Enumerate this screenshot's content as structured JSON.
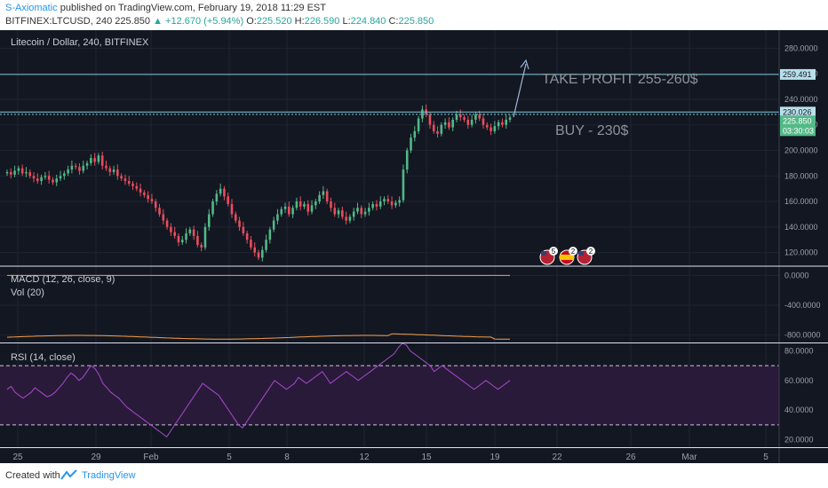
{
  "header": {
    "author": "S-Axiomatic",
    "published": "published on TradingView.com, February 19, 2018 11:29 EST",
    "symbol": "BITFINEX:LTCUSD, 240",
    "price": "225.850",
    "change": "▲ +12.670 (+5.94%)",
    "o_label": "O:",
    "o": "225.520",
    "h_label": "H:",
    "h": "226.590",
    "l_label": "L:",
    "l": "224.840",
    "c_label": "C:",
    "c": "225.850"
  },
  "footer": {
    "created": "Created with",
    "brand": "TradingView"
  },
  "colors": {
    "background": "#131722",
    "up": "#53b987",
    "down": "#eb4d5c",
    "line": "#7fc8d8",
    "rsi": "#a64ccc",
    "macd": "#f7a14a",
    "text": "#9aa0ac"
  },
  "chart_data": [
    {
      "type": "candlestick",
      "title": "Litecoin / Dollar, 240, BITFINEX",
      "ylim": [
        110,
        290
      ],
      "y_ticks": [
        "280.0000",
        "260.0000",
        "240.0000",
        "220.0000",
        "200.0000",
        "180.0000",
        "160.0000",
        "140.0000",
        "120.0000"
      ],
      "x_ticks": [
        "25",
        "29",
        "Feb",
        "5",
        "8",
        "12",
        "15",
        "19",
        "22",
        "26",
        "Mar",
        "5"
      ],
      "closes": [
        183,
        181,
        184,
        186,
        182,
        183,
        180,
        178,
        176,
        179,
        180,
        177,
        175,
        178,
        180,
        182,
        185,
        188,
        187,
        184,
        188,
        190,
        194,
        191,
        196,
        188,
        186,
        183,
        185,
        180,
        178,
        176,
        174,
        172,
        170,
        167,
        165,
        162,
        160,
        155,
        150,
        145,
        140,
        136,
        133,
        128,
        130,
        135,
        138,
        133,
        126,
        124,
        140,
        150,
        160,
        166,
        170,
        164,
        158,
        150,
        145,
        140,
        135,
        130,
        124,
        120,
        116,
        122,
        130,
        138,
        145,
        150,
        154,
        156,
        150,
        155,
        160,
        156,
        158,
        152,
        157,
        160,
        165,
        168,
        160,
        155,
        150,
        153,
        148,
        145,
        148,
        152,
        155,
        150,
        152,
        155,
        158,
        156,
        160,
        162,
        160,
        157,
        159,
        161,
        185,
        200,
        210,
        215,
        225,
        232,
        228,
        220,
        215,
        213,
        220,
        222,
        218,
        224,
        228,
        226,
        224,
        220,
        224,
        228,
        225,
        220,
        218,
        215,
        219,
        222,
        220,
        224,
        225.85
      ],
      "price_labels": [
        "259.491",
        "230.026",
        "225.850",
        "03:30:03"
      ],
      "levels": [
        259.491,
        230.026,
        228.2
      ],
      "annotations": [
        "TAKE PROFIT 255-260$",
        "BUY - 230$"
      ]
    },
    {
      "type": "line",
      "title": "MACD (12, 26, close, 9)",
      "ylim": [
        -900,
        100
      ],
      "y_ticks": [
        "0.0000",
        "-400.0000",
        "-800.0000"
      ]
    },
    {
      "type": "bar",
      "title": "Vol (20)"
    },
    {
      "type": "line",
      "title": "RSI (14, close)",
      "ylim": [
        15,
        85
      ],
      "y_ticks": [
        "80.0000",
        "60.0000",
        "40.0000",
        "20.0000"
      ],
      "bands": [
        70,
        30
      ],
      "values": [
        54,
        56,
        52,
        50,
        48,
        50,
        52,
        55,
        53,
        51,
        49,
        50,
        52,
        55,
        58,
        62,
        65,
        63,
        60,
        62,
        66,
        70,
        68,
        64,
        58,
        55,
        52,
        50,
        48,
        45,
        42,
        40,
        38,
        36,
        34,
        32,
        30,
        28,
        26,
        24,
        22,
        26,
        30,
        34,
        38,
        42,
        46,
        50,
        54,
        58,
        56,
        54,
        52,
        50,
        46,
        42,
        38,
        34,
        30,
        28,
        32,
        36,
        40,
        44,
        48,
        52,
        56,
        60,
        58,
        56,
        54,
        56,
        58,
        62,
        60,
        58,
        60,
        62,
        64,
        66,
        62,
        58,
        60,
        62,
        64,
        66,
        64,
        62,
        60,
        62,
        64,
        66,
        68,
        70,
        72,
        74,
        76,
        78,
        82,
        85,
        84,
        80,
        78,
        76,
        74,
        72,
        70,
        66,
        68,
        70,
        68,
        66,
        64,
        62,
        60,
        58,
        56,
        54,
        56,
        58,
        60,
        58,
        56,
        54,
        56,
        58,
        60
      ]
    }
  ],
  "badges": [
    {
      "country": "US",
      "count": "5"
    },
    {
      "country": "ES",
      "count": "2"
    },
    {
      "country": "US",
      "count": "2"
    }
  ]
}
